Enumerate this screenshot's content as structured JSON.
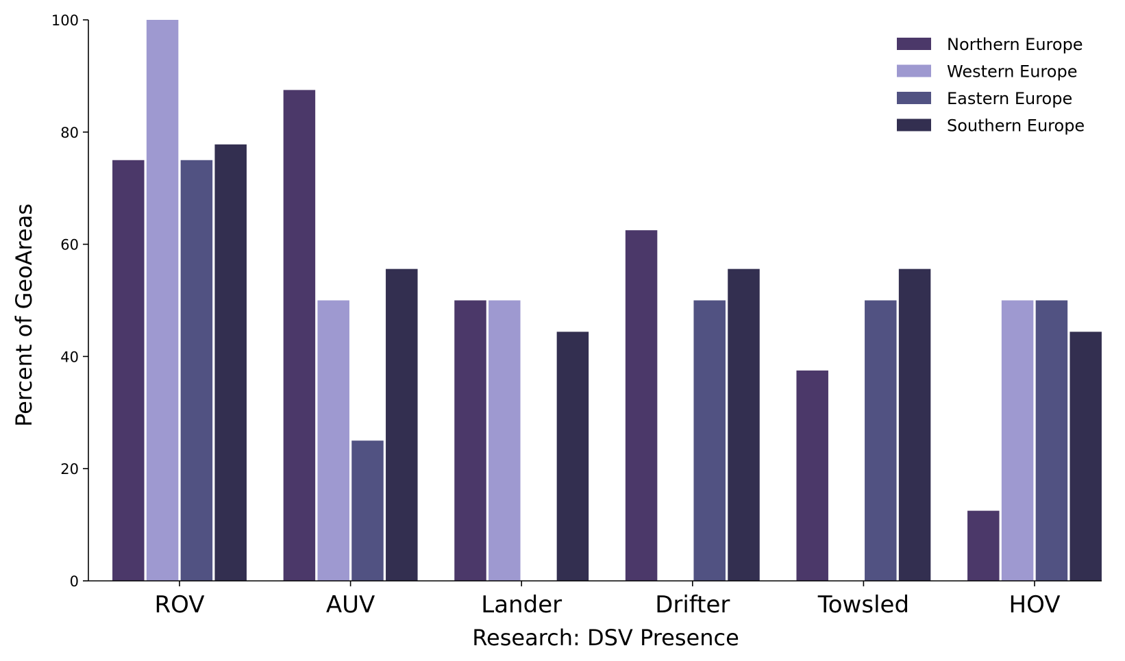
{
  "chart_data": {
    "type": "bar",
    "xlabel": "Research: DSV Presence",
    "ylabel": "Percent of GeoAreas",
    "ylim": [
      0,
      100
    ],
    "yticks": [
      0,
      20,
      40,
      60,
      80,
      100
    ],
    "grid": false,
    "legend_position": "top-right",
    "categories": [
      "ROV",
      "AUV",
      "Lander",
      "Drifter",
      "Towsled",
      "HOV"
    ],
    "series": [
      {
        "name": "Northern Europe",
        "color": "#4b3869",
        "values": [
          75,
          87.5,
          50,
          62.5,
          37.5,
          12.5
        ]
      },
      {
        "name": "Western Europe",
        "color": "#9e99d0",
        "values": [
          100,
          50,
          50,
          0,
          0,
          50
        ]
      },
      {
        "name": "Eastern Europe",
        "color": "#515282",
        "values": [
          75,
          25,
          0,
          50,
          50,
          50
        ]
      },
      {
        "name": "Southern Europe",
        "color": "#332f50",
        "values": [
          77.8,
          55.6,
          44.4,
          55.6,
          55.6,
          44.4
        ]
      }
    ]
  }
}
